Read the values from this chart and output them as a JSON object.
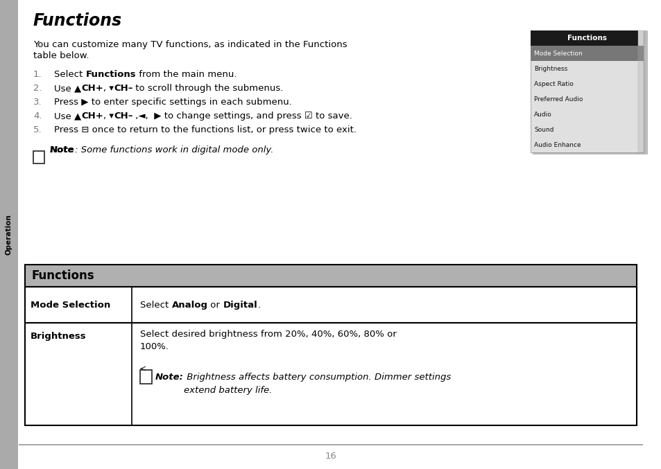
{
  "title": "Functions",
  "bg_color": "#ffffff",
  "page_number": "16",
  "sidebar_color": "#aaaaaa",
  "sidebar_text": "Operation",
  "sidebar_text_color": "#000000",
  "intro_line1": "You can customize many TV functions, as indicated in the Functions",
  "intro_line2": "table below.",
  "step1_pre": "Select ",
  "step1_bold": "Functions",
  "step1_post": " from the main menu.",
  "step2_pre": "Use ▲",
  "step2_b1": "CH+",
  "step2_mid": ", ▾",
  "step2_b2": "CH–",
  "step2_post": " to scroll through the submenus.",
  "step3": "Press ▶ to enter specific settings in each submenu.",
  "step4_pre": "Use ▲",
  "step4_b1": "CH+",
  "step4_mid": ", ▾",
  "step4_b2": "CH–",
  "step4_post": " ,◄,  ▶ to change settings, and press ☑ to save.",
  "step5": "Press ⊟ once to return to the functions list, or press twice to exit.",
  "note1_bold": "Note",
  "note1_text": ": Some functions work in digital mode only.",
  "menu_title": "Functions",
  "menu_items": [
    "Mode Selection",
    "Brightness",
    "Aspect Ratio",
    "Preferred Audio",
    "Audio",
    "Sound",
    "Audio Enhance"
  ],
  "menu_selected": "Mode Selection",
  "menu_bg": "#e0e0e0",
  "menu_title_bg": "#1a1a1a",
  "menu_title_color": "#ffffff",
  "menu_selected_bg": "#777777",
  "table_header": "Functions",
  "table_header_bg": "#b0b0b0",
  "table_header_text_color": "#000000",
  "footer_line_color": "#aaaaaa",
  "footer_page_color": "#888888"
}
